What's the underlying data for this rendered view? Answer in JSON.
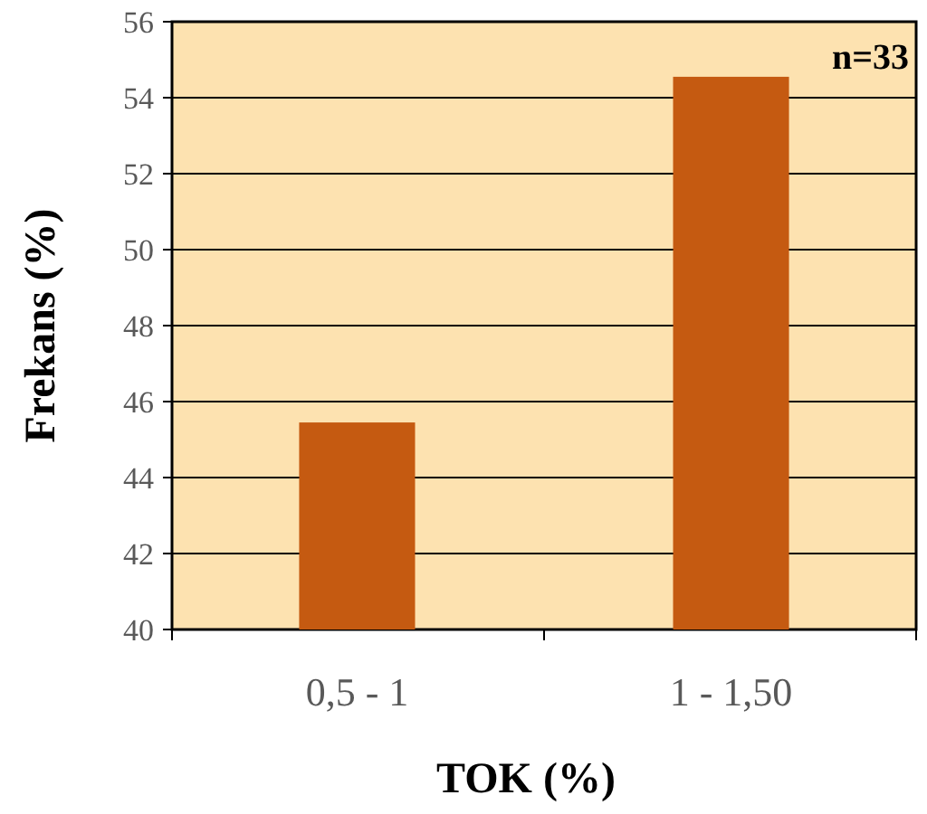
{
  "chart_data": {
    "type": "bar",
    "xlabel": "TOK (%)",
    "ylabel": "Frekans (%)",
    "categories": [
      "0,5 - 1",
      "1 - 1,50"
    ],
    "values": [
      45.45,
      54.55
    ],
    "color": "#c55a11",
    "ylim": [
      40,
      56
    ],
    "yticks": [
      40,
      42,
      44,
      46,
      48,
      50,
      52,
      54,
      56
    ],
    "grid": "y",
    "annotations": [
      "n=33"
    ]
  }
}
